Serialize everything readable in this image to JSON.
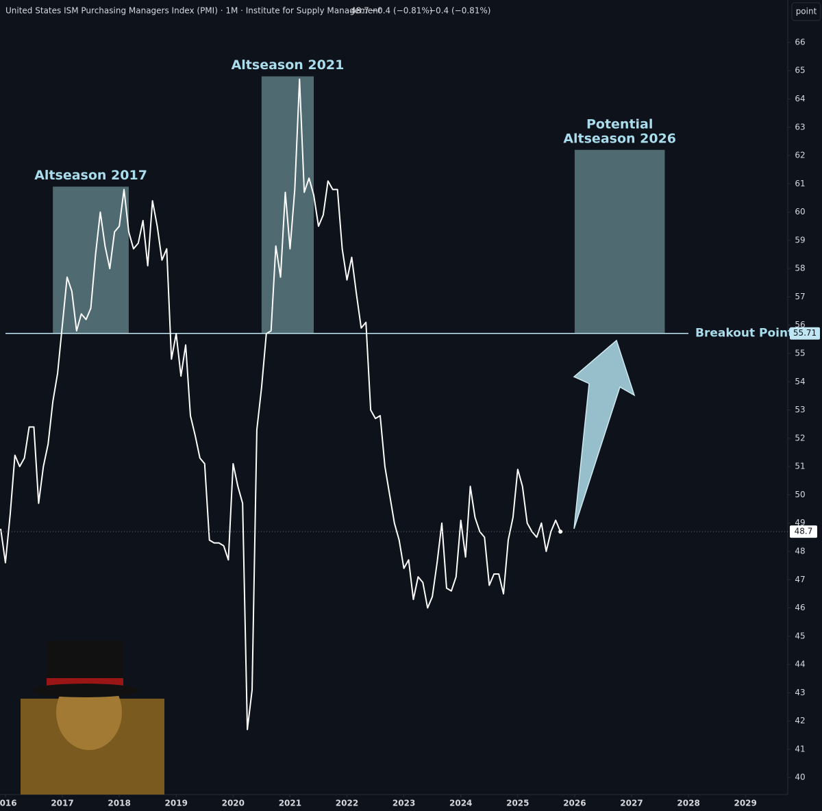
{
  "chart_data": {
    "type": "line",
    "title": "United States ISM Purchasing Managers Index (PMI) · 1M · Institute for Supply Management",
    "change": "−0.4 (−0.81%)",
    "unit_button": "point",
    "x": [
      "2015-12",
      "2016-01",
      "2016-02",
      "2016-03",
      "2016-04",
      "2016-05",
      "2016-06",
      "2016-07",
      "2016-08",
      "2016-09",
      "2016-10",
      "2016-11",
      "2016-12",
      "2017-01",
      "2017-02",
      "2017-03",
      "2017-04",
      "2017-05",
      "2017-06",
      "2017-07",
      "2017-08",
      "2017-09",
      "2017-10",
      "2017-11",
      "2017-12",
      "2018-01",
      "2018-02",
      "2018-03",
      "2018-04",
      "2018-05",
      "2018-06",
      "2018-07",
      "2018-08",
      "2018-09",
      "2018-10",
      "2018-11",
      "2018-12",
      "2019-01",
      "2019-02",
      "2019-03",
      "2019-04",
      "2019-05",
      "2019-06",
      "2019-07",
      "2019-08",
      "2019-09",
      "2019-10",
      "2019-11",
      "2019-12",
      "2020-01",
      "2020-02",
      "2020-03",
      "2020-04",
      "2020-05",
      "2020-06",
      "2020-07",
      "2020-08",
      "2020-09",
      "2020-10",
      "2020-11",
      "2020-12",
      "2021-01",
      "2021-02",
      "2021-03",
      "2021-04",
      "2021-05",
      "2021-06",
      "2021-07",
      "2021-08",
      "2021-09",
      "2021-10",
      "2021-11",
      "2021-12",
      "2022-01",
      "2022-02",
      "2022-03",
      "2022-04",
      "2022-05",
      "2022-06",
      "2022-07",
      "2022-08",
      "2022-09",
      "2022-10",
      "2022-11",
      "2022-12",
      "2023-01",
      "2023-02",
      "2023-03",
      "2023-04",
      "2023-05",
      "2023-06",
      "2023-07",
      "2023-08",
      "2023-09",
      "2023-10",
      "2023-11",
      "2023-12",
      "2024-01",
      "2024-02",
      "2024-03",
      "2024-04",
      "2024-05",
      "2024-06",
      "2024-07",
      "2024-08",
      "2024-09",
      "2024-10",
      "2024-11",
      "2024-12",
      "2025-01",
      "2025-02",
      "2025-03",
      "2025-04",
      "2025-05",
      "2025-06",
      "2025-07",
      "2025-08",
      "2025-09",
      "2025-10"
    ],
    "series": [
      {
        "color": "#ffffff",
        "values": [
          48.8,
          47.6,
          49.3,
          51.4,
          51.0,
          51.3,
          52.4,
          52.4,
          49.7,
          51.0,
          51.8,
          53.3,
          54.3,
          56.0,
          57.7,
          57.2,
          55.8,
          56.4,
          56.2,
          56.6,
          58.5,
          60.0,
          58.8,
          58.0,
          59.3,
          59.5,
          60.8,
          59.3,
          58.7,
          58.9,
          59.7,
          58.1,
          60.4,
          59.5,
          58.3,
          58.7,
          54.8,
          55.7,
          54.2,
          55.3,
          52.8,
          52.1,
          51.3,
          51.1,
          48.4,
          48.3,
          48.3,
          48.2,
          47.7,
          51.1,
          50.3,
          49.7,
          41.7,
          43.1,
          52.3,
          53.8,
          55.7,
          55.8,
          58.8,
          57.7,
          60.7,
          58.7,
          60.8,
          64.7,
          60.7,
          61.2,
          60.6,
          59.5,
          59.9,
          61.1,
          60.8,
          60.8,
          58.7,
          57.6,
          58.4,
          57.1,
          55.9,
          56.1,
          53.0,
          52.7,
          52.8,
          51.0,
          50.0,
          49.0,
          48.4,
          47.4,
          47.7,
          46.3,
          47.1,
          46.9,
          46.0,
          46.4,
          47.6,
          49.0,
          46.7,
          46.6,
          47.1,
          49.1,
          47.8,
          50.3,
          49.2,
          48.7,
          48.5,
          46.8,
          47.2,
          47.2,
          46.5,
          48.4,
          49.2,
          50.9,
          50.3,
          49.0,
          48.7,
          48.5,
          49.0,
          48.0,
          48.7,
          49.1,
          48.7
        ]
      }
    ],
    "xlim": [
      "2015-12",
      "2029-09"
    ],
    "xticks": [
      2016,
      2017,
      2018,
      2019,
      2020,
      2021,
      2022,
      2023,
      2024,
      2025,
      2026,
      2027,
      2028,
      2029
    ],
    "ylim": [
      39.4,
      67.5
    ],
    "yticks": [
      40,
      41,
      42,
      43,
      44,
      45,
      46,
      47,
      48,
      49,
      50,
      51,
      52,
      53,
      54,
      55,
      56,
      57,
      58,
      59,
      60,
      61,
      62,
      63,
      64,
      65,
      66
    ],
    "hlines": [
      {
        "value": 55.71,
        "label": "Breakout Point",
        "color": "#bfe6f2"
      }
    ],
    "zones": [
      {
        "label": [
          "Altseason 2017"
        ],
        "x": [
          "2016-11",
          "2018-03"
        ],
        "y": [
          55.71,
          60.9
        ],
        "color": "#5a7a80"
      },
      {
        "label": [
          "Altseason 2021"
        ],
        "x": [
          "2020-07",
          "2021-06"
        ],
        "y": [
          55.71,
          64.8
        ],
        "color": "#5a7a80"
      },
      {
        "label": [
          "Potential",
          "Altseason 2026"
        ],
        "x": [
          "2026-01",
          "2027-08"
        ],
        "y": [
          55.71,
          62.2
        ],
        "color": "#5a7a80"
      }
    ],
    "grid": false
  }
}
